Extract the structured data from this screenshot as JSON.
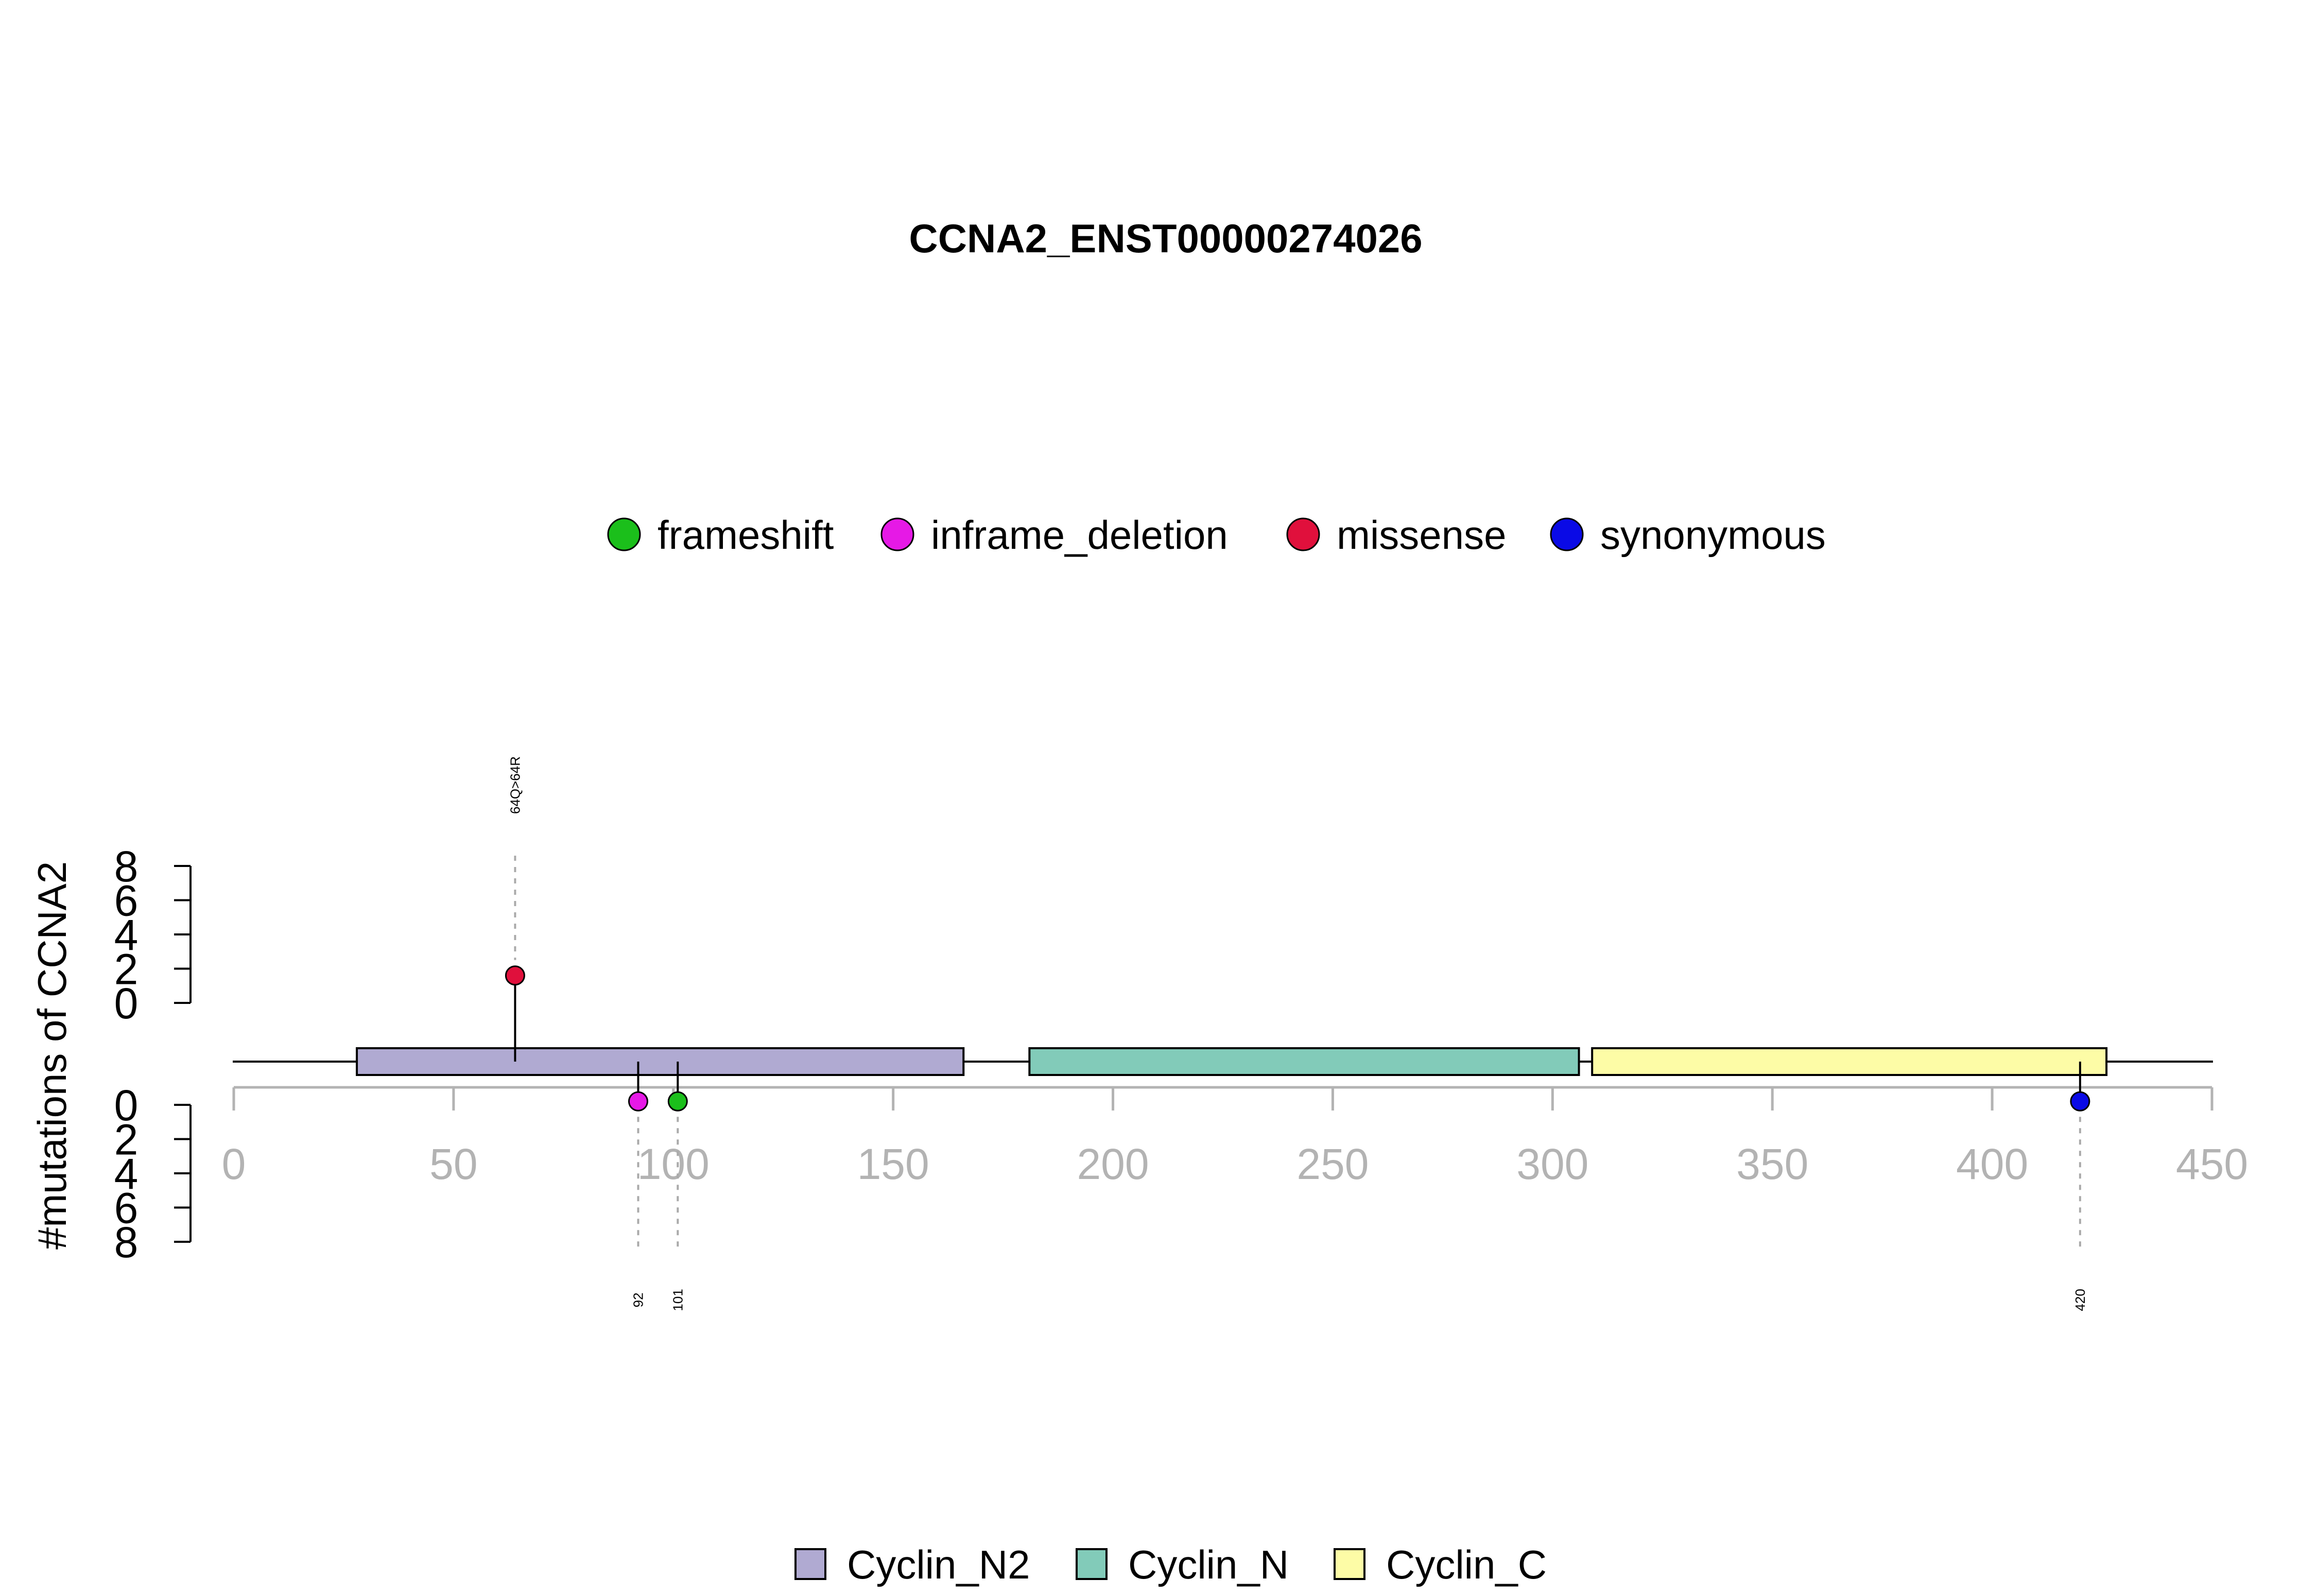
{
  "chart_data": {
    "type": "lollipop",
    "title": "CCNA2_ENST00000274026",
    "ylabel": "#mutations of CCNA2",
    "xlim": [
      0,
      450
    ],
    "x_ticks": [
      "0",
      "50",
      "100",
      "150",
      "200",
      "250",
      "300",
      "350",
      "400",
      "450"
    ],
    "y_ticks": [
      "0",
      "2",
      "4",
      "6",
      "8"
    ],
    "ylim": [
      0,
      8
    ],
    "protein_length": 450,
    "mutation_legend": [
      {
        "name": "frameshift",
        "color": "#1bbf1b"
      },
      {
        "name": "inframe_deletion",
        "color": "#e619e6"
      },
      {
        "name": "missense",
        "color": "#e0103c"
      },
      {
        "name": "synonymous",
        "color": "#0a0ae6"
      }
    ],
    "domain_legend": [
      {
        "name": "Cyclin_N2",
        "color": "#b0aad2"
      },
      {
        "name": "Cyclin_N",
        "color": "#82cbb9"
      },
      {
        "name": "Cyclin_C",
        "color": "#fdfca6"
      }
    ],
    "domains": [
      {
        "name": "Cyclin_N2",
        "start": 28,
        "end": 166,
        "color": "#b0aad2"
      },
      {
        "name": "Cyclin_N",
        "start": 181,
        "end": 306,
        "color": "#82cbb9"
      },
      {
        "name": "Cyclin_C",
        "start": 309,
        "end": 426,
        "color": "#fdfca6"
      }
    ],
    "mutations_top": [
      {
        "position": 64,
        "count": 1,
        "type": "missense",
        "color": "#e0103c",
        "label": "64Q>64R"
      }
    ],
    "mutations_bottom": [
      {
        "position": 92,
        "count": 1,
        "type": "inframe_deletion",
        "color": "#e619e6",
        "label": "92"
      },
      {
        "position": 101,
        "count": 1,
        "type": "frameshift",
        "color": "#1bbf1b",
        "label": "101"
      },
      {
        "position": 420,
        "count": 1,
        "type": "synonymous",
        "color": "#0a0ae6",
        "label": "420"
      }
    ]
  }
}
